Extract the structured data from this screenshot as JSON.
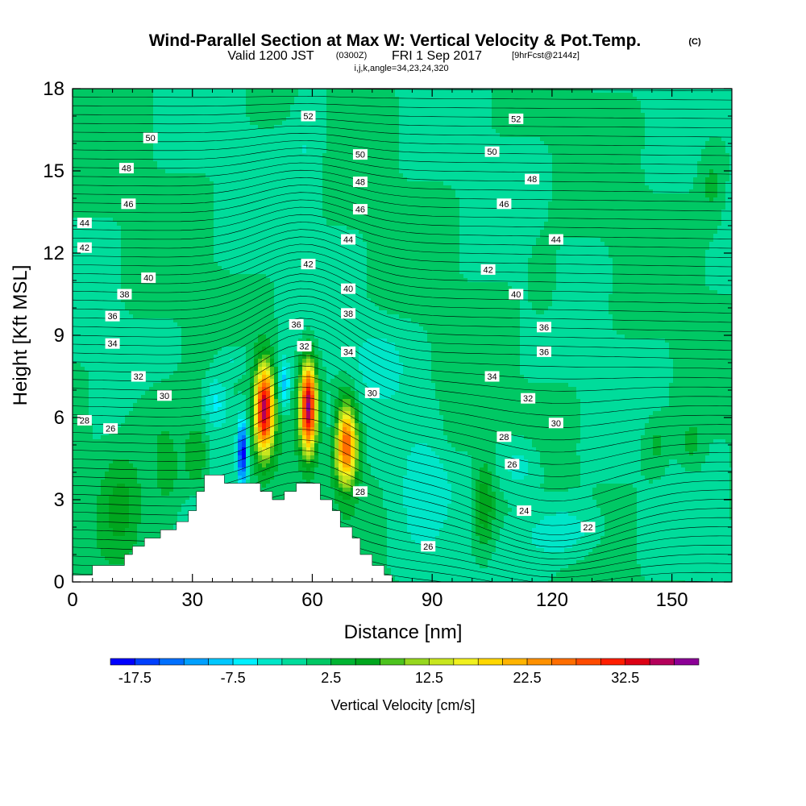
{
  "chart_data": {
    "type": "heatmap",
    "title_main": "Wind-Parallel Section at Max W: Vertical Velocity & Pot.Temp.",
    "title_mark": "(C)",
    "subtitle_a": "Valid 1200 JST",
    "subtitle_b": "(0300Z)",
    "subtitle_c": "FRI 1 Sep 2017",
    "subtitle_d": "[9hrFcst@2144z]",
    "subtitle2": "i,j,k,angle=34,23,24,320",
    "xlabel": "Distance [nm]",
    "ylabel": "Height [Kft MSL]",
    "xlim": [
      0,
      165
    ],
    "ylim": [
      0,
      18
    ],
    "xticks": [
      0,
      30,
      60,
      90,
      120,
      150
    ],
    "yticks": [
      0,
      3,
      6,
      9,
      12,
      15,
      18
    ],
    "colorbar": {
      "label": "Vertical Velocity [cm/s]",
      "tick_labels": [
        "-17.5",
        "-7.5",
        "2.5",
        "12.5",
        "22.5",
        "32.5"
      ],
      "tick_values": [
        -17.5,
        -7.5,
        2.5,
        12.5,
        22.5,
        32.5
      ],
      "bin_edges": [
        -20,
        -17.5,
        -15,
        -12.5,
        -10,
        -7.5,
        -5,
        -2.5,
        0,
        2.5,
        5,
        7.5,
        10,
        12.5,
        15,
        17.5,
        20,
        22.5,
        25,
        27.5,
        30,
        32.5,
        35,
        37.5,
        40
      ],
      "colors": [
        "#0000ff",
        "#0040ff",
        "#0070ff",
        "#00a0ff",
        "#00c8ff",
        "#00f0ff",
        "#00e6c8",
        "#00dc9b",
        "#00c864",
        "#00b432",
        "#00a61e",
        "#4cc31e",
        "#96d71e",
        "#c8e61e",
        "#f0f01e",
        "#ffd700",
        "#ffb400",
        "#ff9100",
        "#ff6e00",
        "#ff4b00",
        "#ff1e00",
        "#dc0014",
        "#b4005a",
        "#8c0096",
        "#6e00b4"
      ]
    },
    "terrain": [
      [
        0,
        0.25
      ],
      [
        5,
        0.25
      ],
      [
        5,
        0.6
      ],
      [
        13,
        0.6
      ],
      [
        13,
        1.0
      ],
      [
        15,
        1.0
      ],
      [
        15,
        1.3
      ],
      [
        18,
        1.3
      ],
      [
        18,
        1.6
      ],
      [
        22,
        1.6
      ],
      [
        22,
        1.9
      ],
      [
        26,
        1.9
      ],
      [
        26,
        2.2
      ],
      [
        29,
        2.2
      ],
      [
        29,
        2.6
      ],
      [
        31,
        2.6
      ],
      [
        31,
        3.3
      ],
      [
        33,
        3.3
      ],
      [
        33,
        3.9
      ],
      [
        38,
        3.9
      ],
      [
        38,
        3.6
      ],
      [
        44,
        3.6
      ],
      [
        44,
        3.6
      ],
      [
        47,
        3.6
      ],
      [
        47,
        3.3
      ],
      [
        50,
        3.3
      ],
      [
        50,
        3.0
      ],
      [
        53,
        3.0
      ],
      [
        53,
        3.3
      ],
      [
        56,
        3.3
      ],
      [
        56,
        3.6
      ],
      [
        62,
        3.6
      ],
      [
        62,
        3.0
      ],
      [
        65,
        3.0
      ],
      [
        65,
        2.6
      ],
      [
        67,
        2.6
      ],
      [
        67,
        2.0
      ],
      [
        70,
        2.0
      ],
      [
        70,
        1.6
      ],
      [
        72,
        1.6
      ],
      [
        72,
        1.0
      ],
      [
        75,
        1.0
      ],
      [
        75,
        0.6
      ],
      [
        78,
        0.6
      ],
      [
        78,
        0.25
      ],
      [
        80,
        0.25
      ],
      [
        80,
        0
      ]
    ],
    "theta_labels": [
      {
        "text": "52",
        "x": 59,
        "y": 17.0
      },
      {
        "text": "52",
        "x": 111,
        "y": 16.9
      },
      {
        "text": "50",
        "x": 19.5,
        "y": 16.2
      },
      {
        "text": "50",
        "x": 72,
        "y": 15.6
      },
      {
        "text": "50",
        "x": 105,
        "y": 15.7
      },
      {
        "text": "48",
        "x": 13.5,
        "y": 15.1
      },
      {
        "text": "48",
        "x": 72,
        "y": 14.6
      },
      {
        "text": "48",
        "x": 115,
        "y": 14.7
      },
      {
        "text": "46",
        "x": 14,
        "y": 13.8
      },
      {
        "text": "46",
        "x": 72,
        "y": 13.6
      },
      {
        "text": "46",
        "x": 108,
        "y": 13.8
      },
      {
        "text": "44",
        "x": 3,
        "y": 13.1
      },
      {
        "text": "44",
        "x": 69,
        "y": 12.5
      },
      {
        "text": "44",
        "x": 121,
        "y": 12.5
      },
      {
        "text": "42",
        "x": 3,
        "y": 12.2
      },
      {
        "text": "42",
        "x": 59,
        "y": 11.6
      },
      {
        "text": "42",
        "x": 104,
        "y": 11.4
      },
      {
        "text": "40",
        "x": 19,
        "y": 11.1
      },
      {
        "text": "40",
        "x": 69,
        "y": 10.7
      },
      {
        "text": "40",
        "x": 111,
        "y": 10.5
      },
      {
        "text": "38",
        "x": 13,
        "y": 10.5
      },
      {
        "text": "38",
        "x": 69,
        "y": 9.8
      },
      {
        "text": "36",
        "x": 10,
        "y": 9.7
      },
      {
        "text": "36",
        "x": 56,
        "y": 9.4
      },
      {
        "text": "36",
        "x": 118,
        "y": 9.3
      },
      {
        "text": "36",
        "x": 118,
        "y": 8.4
      },
      {
        "text": "34",
        "x": 10,
        "y": 8.7
      },
      {
        "text": "34",
        "x": 69,
        "y": 8.4
      },
      {
        "text": "34",
        "x": 105,
        "y": 7.5
      },
      {
        "text": "32",
        "x": 16.5,
        "y": 7.5
      },
      {
        "text": "32",
        "x": 58,
        "y": 8.6
      },
      {
        "text": "32",
        "x": 114,
        "y": 6.7
      },
      {
        "text": "30",
        "x": 23,
        "y": 6.8
      },
      {
        "text": "30",
        "x": 75,
        "y": 6.9
      },
      {
        "text": "30",
        "x": 121,
        "y": 5.8
      },
      {
        "text": "28",
        "x": 3,
        "y": 5.9
      },
      {
        "text": "28",
        "x": 72,
        "y": 3.3
      },
      {
        "text": "28",
        "x": 108,
        "y": 5.3
      },
      {
        "text": "26",
        "x": 9.5,
        "y": 5.6
      },
      {
        "text": "26",
        "x": 89,
        "y": 1.3
      },
      {
        "text": "26",
        "x": 110,
        "y": 4.3
      },
      {
        "text": "24",
        "x": 113,
        "y": 2.6
      },
      {
        "text": "22",
        "x": 129,
        "y": 2.0
      }
    ]
  }
}
